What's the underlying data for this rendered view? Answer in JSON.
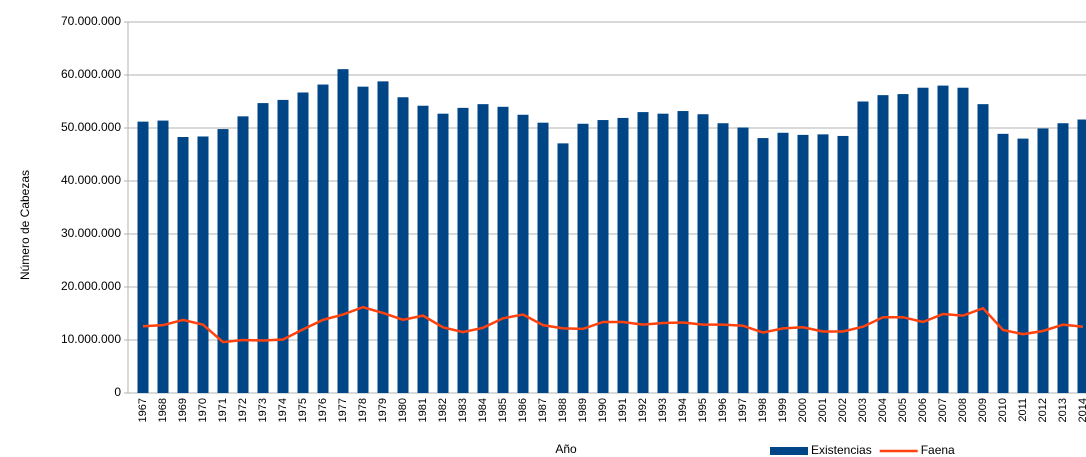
{
  "chart_data": {
    "type": "bar",
    "y_label": "Número de Cabezas",
    "x_label": "Año",
    "categories": [
      "1967",
      "1968",
      "1969",
      "1970",
      "1971",
      "1972",
      "1973",
      "1974",
      "1975",
      "1976",
      "1977",
      "1978",
      "1979",
      "1980",
      "1981",
      "1982",
      "1983",
      "1984",
      "1985",
      "1986",
      "1987",
      "1988",
      "1989",
      "1990",
      "1991",
      "1992",
      "1993",
      "1994",
      "1995",
      "1996",
      "1997",
      "1998",
      "1999",
      "2000",
      "2001",
      "2002",
      "2003",
      "2004",
      "2005",
      "2006",
      "2007",
      "2008",
      "2009",
      "2010",
      "2011",
      "2012",
      "2013",
      "2014"
    ],
    "series": [
      {
        "name": "Existencias",
        "type": "bar",
        "color": "#004586",
        "values": [
          51200000,
          51400000,
          48300000,
          48400000,
          49800000,
          52200000,
          54700000,
          55300000,
          56700000,
          58200000,
          61100000,
          57800000,
          58800000,
          55800000,
          54200000,
          52700000,
          53800000,
          54500000,
          54000000,
          52500000,
          51000000,
          47100000,
          50800000,
          51500000,
          51900000,
          53000000,
          52700000,
          53200000,
          52600000,
          50900000,
          50100000,
          48100000,
          49100000,
          48700000,
          48800000,
          48500000,
          55000000,
          56200000,
          56400000,
          57600000,
          58000000,
          57600000,
          54500000,
          48900000,
          48000000,
          49900000,
          50900000,
          51600000
        ]
      },
      {
        "name": "Faena",
        "type": "line",
        "color": "#ff420e",
        "values": [
          12600000,
          12800000,
          13800000,
          12900000,
          9600000,
          10000000,
          9900000,
          10100000,
          12000000,
          13800000,
          14800000,
          16200000,
          15100000,
          13800000,
          14600000,
          12400000,
          11500000,
          12300000,
          14100000,
          14800000,
          12800000,
          12200000,
          12100000,
          13400000,
          13400000,
          12900000,
          13200000,
          13300000,
          12900000,
          12900000,
          12700000,
          11400000,
          12200000,
          12400000,
          11600000,
          11600000,
          12500000,
          14300000,
          14300000,
          13400000,
          14900000,
          14600000,
          16000000,
          11900000,
          11100000,
          11700000,
          12900000,
          12500000
        ]
      }
    ],
    "ylim": [
      0,
      70000000
    ],
    "yticks": [
      0,
      {
        "value": 10000000,
        "label": "10.000.000"
      },
      {
        "value": 20000000,
        "label": "20.000.000"
      },
      {
        "value": 30000000,
        "label": "30.000.000"
      },
      {
        "value": 40000000,
        "label": "40.000.000"
      },
      {
        "value": 50000000,
        "label": "50.000.000"
      },
      {
        "value": 60000000,
        "label": "60.000.000"
      },
      {
        "value": 70000000,
        "label": "70.000.000"
      }
    ],
    "grid": true,
    "legend": "bottom-right"
  }
}
